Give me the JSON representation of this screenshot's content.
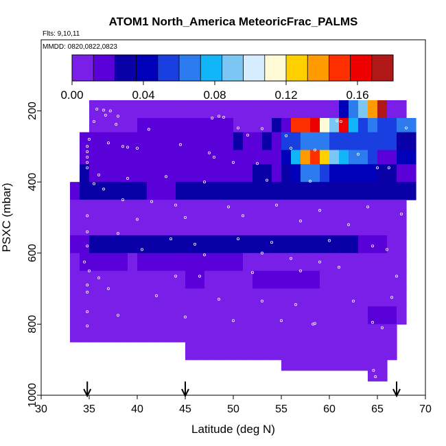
{
  "chart_data": {
    "type": "heatmap",
    "title": "ATOM1 North_America MeteoricFrac_PALMS",
    "subtitle": "Flts: 9,10,11",
    "note": "MMDD: 0820,0822,0823",
    "xlabel": "Latitude (deg N)",
    "ylabel": "PSXC (mbar)",
    "xlim": [
      30,
      70
    ],
    "ylim": [
      1000,
      0
    ],
    "x_ticks": [
      "30",
      "35",
      "40",
      "45",
      "50",
      "55",
      "60",
      "65",
      "70"
    ],
    "y_ticks": [
      "200",
      "400",
      "600",
      "800",
      "1000"
    ],
    "y_reversed": true,
    "grid": false,
    "colorbar": {
      "range": [
        0,
        0.18
      ],
      "tick_labels": [
        "0.00",
        "0.04",
        "0.08",
        "0.12",
        "0.16"
      ],
      "colors": [
        "#7a1fe8",
        "#5a00d8",
        "#0a00a8",
        "#0000b8",
        "#1a3fe0",
        "#2c7cf0",
        "#12b6f8",
        "#7cc6f4",
        "#d6ecff",
        "#fffbd6",
        "#ffd000",
        "#ff9a00",
        "#ff3000",
        "#ee0000",
        "#b01818"
      ]
    },
    "flight_markers_lat": [
      34.8,
      45.0,
      67.0
    ],
    "layers": [
      {
        "p": [
          170,
          220
        ],
        "lat": [
          35,
          68
        ],
        "values": [
          0.01,
          0.01,
          0.01,
          0.01,
          0.01,
          0.01,
          0.01,
          0.01,
          0.01,
          0.01,
          0.01,
          0.01,
          0.01,
          0.01,
          0.01,
          0.01,
          0.01,
          0.01,
          0.01,
          0.01,
          0.01,
          0.01,
          0.01,
          0.01,
          0.01,
          0.01,
          0.038,
          0.06,
          0.09,
          0.14,
          0.18,
          0.0,
          0.0
        ]
      },
      {
        "p": [
          220,
          260
        ],
        "lat": [
          35,
          69
        ],
        "values": [
          0.01,
          0.01,
          0.01,
          0.01,
          0.01,
          0.015,
          0.015,
          0.012,
          0.012,
          0.012,
          0.012,
          0.012,
          0.015,
          0.012,
          0.012,
          0.01,
          0.01,
          0.01,
          0.01,
          0.03,
          0.02,
          0.15,
          0.15,
          0.16,
          0.11,
          0.09,
          0.165,
          0.08,
          0.05,
          0.06,
          0.05,
          0.05,
          0.06,
          0.06
        ]
      },
      {
        "p": [
          260,
          310
        ],
        "lat": [
          34,
          69
        ],
        "values": [
          0.02,
          0.02,
          0.02,
          0.02,
          0.02,
          0.02,
          0.02,
          0.02,
          0.015,
          0.015,
          0.015,
          0.012,
          0.012,
          0.012,
          0.015,
          0.02,
          0.025,
          0.02,
          0.02,
          0.025,
          0.02,
          0.05,
          0.05,
          0.06,
          0.065,
          0.06,
          0.05,
          0.05,
          0.05,
          0.055,
          0.05,
          0.05,
          0.05,
          0.03,
          0.03
        ]
      },
      {
        "p": [
          310,
          350
        ],
        "lat": [
          34,
          69
        ],
        "values": [
          0.02,
          0.015,
          0.015,
          0.015,
          0.015,
          0.015,
          0.015,
          0.015,
          0.015,
          0.015,
          0.015,
          0.015,
          0.015,
          0.015,
          0.015,
          0.018,
          0.02,
          0.02,
          0.02,
          0.02,
          0.02,
          0.04,
          0.08,
          0.14,
          0.15,
          0.12,
          0.09,
          0.08,
          0.07,
          0.06,
          0.05,
          0.02,
          0.015,
          0.04,
          0.04
        ]
      },
      {
        "p": [
          350,
          400
        ],
        "lat": [
          34,
          69
        ],
        "values": [
          0.03,
          0.02,
          0.015,
          0.015,
          0.015,
          0.015,
          0.015,
          0.015,
          0.015,
          0.015,
          0.015,
          0.015,
          0.015,
          0.015,
          0.015,
          0.015,
          0.02,
          0.02,
          0.025,
          0.03,
          0.02,
          0.03,
          0.04,
          0.06,
          0.06,
          0.05,
          0.045,
          0.04,
          0.04,
          0.04,
          0.04,
          0.03,
          0.03,
          0.02,
          0.02
        ]
      },
      {
        "p": [
          400,
          450
        ],
        "lat": [
          33,
          69
        ],
        "values": [
          0.02,
          0.025,
          0.03,
          0.03,
          0.03,
          0.025,
          0.025,
          0.025,
          0.02,
          0.02,
          0.02,
          0.025,
          0.025,
          0.025,
          0.025,
          0.025,
          0.025,
          0.025,
          0.025,
          0.025,
          0.025,
          0.025,
          0.025,
          0.025,
          0.025,
          0.025,
          0.025,
          0.025,
          0.025,
          0.025,
          0.025,
          0.025,
          0.025,
          0.025,
          0.025,
          0.025
        ]
      },
      {
        "p": [
          450,
          500
        ],
        "lat": [
          33,
          68
        ],
        "values": [
          0.01,
          0.01,
          0.01,
          0.01,
          0.01,
          0.01,
          0.01,
          0.01,
          0.01,
          0.01,
          0.01,
          0.01,
          0.01,
          0.01,
          0.01,
          0.01,
          0.01,
          0.01,
          0.01,
          0.01,
          0.01,
          0.01,
          0.01,
          0.01,
          0.01,
          0.01,
          0.01,
          0.01,
          0.01,
          0.01,
          0.01,
          0.01,
          0.01,
          0.01,
          0.01
        ]
      },
      {
        "p": [
          500,
          550
        ],
        "lat": [
          33,
          68
        ],
        "values": [
          0.01,
          0.01,
          0.01,
          0.01,
          0.01,
          0.01,
          0.01,
          0.01,
          0.01,
          0.01,
          0.01,
          0.01,
          0.01,
          0.01,
          0.01,
          0.01,
          0.01,
          0.01,
          0.01,
          0.01,
          0.01,
          0.01,
          0.01,
          0.01,
          0.01,
          0.01,
          0.01,
          0.01,
          0.01,
          0.01,
          0.01,
          0.01,
          0.01,
          0.01,
          0.01
        ]
      },
      {
        "p": [
          550,
          600
        ],
        "lat": [
          33,
          68
        ],
        "values": [
          0.012,
          0.02,
          0.025,
          0.025,
          0.025,
          0.025,
          0.025,
          0.025,
          0.025,
          0.025,
          0.025,
          0.025,
          0.025,
          0.025,
          0.025,
          0.025,
          0.025,
          0.025,
          0.025,
          0.025,
          0.025,
          0.025,
          0.025,
          0.025,
          0.025,
          0.025,
          0.025,
          0.025,
          0.025,
          0.025,
          0.02,
          0.015,
          0.012,
          0.01,
          0.01
        ]
      },
      {
        "p": [
          600,
          650
        ],
        "lat": [
          33,
          68
        ],
        "values": [
          0.01,
          0.012,
          0.012,
          0.015,
          0.015,
          0.012,
          0.01,
          0.012,
          0.015,
          0.015,
          0.015,
          0.015,
          0.015,
          0.015,
          0.015,
          0.015,
          0.015,
          0.012,
          0.01,
          0.01,
          0.01,
          0.01,
          0.01,
          0.01,
          0.01,
          0.01,
          0.01,
          0.01,
          0.01,
          0.01,
          0.01,
          0.01,
          0.01,
          0.01,
          0.01
        ]
      },
      {
        "p": [
          650,
          700
        ],
        "lat": [
          33,
          68
        ],
        "values": [
          0.008,
          0.008,
          0.008,
          0.008,
          0.008,
          0.008,
          0.008,
          0.008,
          0.008,
          0.008,
          0.008,
          0.008,
          0.012,
          0.012,
          0.01,
          0.01,
          0.01,
          0.01,
          0.01,
          0.012,
          0.012,
          0.015,
          0.015,
          0.015,
          0.015,
          0.015,
          0.01,
          0.01,
          0.008,
          0.008,
          0.008,
          0.008,
          0.008,
          0.008,
          0.008
        ]
      },
      {
        "p": [
          700,
          750
        ],
        "lat": [
          33,
          68
        ],
        "values": [
          0.008,
          0.008,
          0.008,
          0.008,
          0.008,
          0.008,
          0.008,
          0.008,
          0.008,
          0.008,
          0.008,
          0.008,
          0.008,
          0.008,
          0.008,
          0.008,
          0.008,
          0.008,
          0.008,
          0.008,
          0.008,
          0.008,
          0.008,
          0.008,
          0.008,
          0.008,
          0.008,
          0.008,
          0.008,
          0.008,
          0.008,
          0.008,
          0.008,
          0.008,
          0.008
        ]
      },
      {
        "p": [
          750,
          800
        ],
        "lat": [
          33,
          68
        ],
        "values": [
          0.008,
          0.008,
          0.008,
          0.008,
          0.008,
          0.008,
          0.008,
          0.008,
          0.008,
          0.008,
          0.008,
          0.008,
          0.008,
          0.008,
          0.008,
          0.008,
          0.008,
          0.008,
          0.008,
          0.008,
          0.008,
          0.008,
          0.008,
          0.008,
          0.008,
          0.008,
          0.008,
          0.008,
          0.008,
          0.008,
          0.008,
          0.012,
          0.012,
          0.012,
          0.008
        ]
      },
      {
        "p": [
          800,
          850
        ],
        "lat": [
          33,
          67
        ],
        "values": [
          0.008,
          0.008,
          0.008,
          0.008,
          0.008,
          0.008,
          0.008,
          0.008,
          0.008,
          0.008,
          0.008,
          0.008,
          0.008,
          0.008,
          0.008,
          0.008,
          0.008,
          0.008,
          0.008,
          0.008,
          0.008,
          0.008,
          0.008,
          0.008,
          0.008,
          0.008,
          0.008,
          0.008,
          0.008,
          0.008,
          0.008,
          0.008,
          0.008,
          0.008
        ]
      },
      {
        "p": [
          850,
          900
        ],
        "lat": [
          45,
          67
        ],
        "values": [
          0.008,
          0.008,
          0.008,
          0.008,
          0.008,
          0.008,
          0.008,
          0.008,
          0.008,
          0.008,
          0.008,
          0.008,
          0.008,
          0.008,
          0.008,
          0.008,
          0.008,
          0.008,
          0.008,
          0.008,
          0.008,
          0.008
        ]
      },
      {
        "p": [
          900,
          930
        ],
        "lat": [
          55,
          66
        ],
        "values": [
          0.008,
          0.008,
          0.008,
          0.008,
          0.008,
          0.008,
          0.008,
          0.008,
          0.008,
          0.008,
          0.008
        ]
      },
      {
        "p": [
          930,
          960
        ],
        "lat": [
          64,
          66
        ],
        "values": [
          0.008,
          0.008
        ]
      }
    ],
    "sample_points": [
      [
        35.8,
        195
      ],
      [
        36.5,
        198
      ],
      [
        37.2,
        200
      ],
      [
        36.7,
        212
      ],
      [
        38.0,
        215
      ],
      [
        35.5,
        230
      ],
      [
        37.8,
        238
      ],
      [
        41.2,
        252
      ],
      [
        48.5,
        215
      ],
      [
        49.0,
        218
      ],
      [
        47.8,
        220
      ],
      [
        50.5,
        248
      ],
      [
        51.5,
        268
      ],
      [
        53.0,
        250
      ],
      [
        55.5,
        270
      ],
      [
        60.8,
        228
      ],
      [
        61.2,
        230
      ],
      [
        68.0,
        248
      ],
      [
        35.0,
        280
      ],
      [
        37.0,
        290
      ],
      [
        38.5,
        300
      ],
      [
        39.0,
        302
      ],
      [
        40.0,
        305
      ],
      [
        44.5,
        295
      ],
      [
        47.5,
        318
      ],
      [
        48.0,
        330
      ],
      [
        50.0,
        345
      ],
      [
        52.5,
        348
      ],
      [
        56.0,
        305
      ],
      [
        58.5,
        310
      ],
      [
        63.0,
        322
      ],
      [
        65.0,
        360
      ],
      [
        66.2,
        360
      ],
      [
        34.8,
        300
      ],
      [
        34.8,
        315
      ],
      [
        34.8,
        330
      ],
      [
        34.8,
        345
      ],
      [
        34.8,
        360
      ],
      [
        36.0,
        380
      ],
      [
        39.0,
        390
      ],
      [
        43.0,
        385
      ],
      [
        47.0,
        400
      ],
      [
        53.5,
        395
      ],
      [
        58.0,
        398
      ],
      [
        35.5,
        405
      ],
      [
        36.5,
        420
      ],
      [
        38.5,
        450
      ],
      [
        41.5,
        455
      ],
      [
        44.0,
        465
      ],
      [
        49.5,
        470
      ],
      [
        54.5,
        465
      ],
      [
        59.0,
        480
      ],
      [
        64.0,
        470
      ],
      [
        67.5,
        490
      ],
      [
        34.8,
        495
      ],
      [
        40.0,
        505
      ],
      [
        45.0,
        500
      ],
      [
        51.0,
        495
      ],
      [
        57.0,
        510
      ],
      [
        62.0,
        520
      ],
      [
        34.8,
        540
      ],
      [
        38.0,
        545
      ],
      [
        43.5,
        560
      ],
      [
        46.0,
        575
      ],
      [
        50.5,
        560
      ],
      [
        54.0,
        570
      ],
      [
        60.0,
        565
      ],
      [
        64.5,
        580
      ],
      [
        34.8,
        580
      ],
      [
        40.5,
        590
      ],
      [
        47.0,
        605
      ],
      [
        53.0,
        600
      ],
      [
        56.0,
        615
      ],
      [
        59.0,
        625
      ],
      [
        66.0,
        590
      ],
      [
        34.5,
        625
      ],
      [
        35.0,
        650
      ],
      [
        36.0,
        670
      ],
      [
        44.0,
        665
      ],
      [
        46.5,
        665
      ],
      [
        52.0,
        655
      ],
      [
        57.0,
        650
      ],
      [
        61.0,
        640
      ],
      [
        67.0,
        665
      ],
      [
        34.8,
        690
      ],
      [
        34.8,
        710
      ],
      [
        37.0,
        700
      ],
      [
        42.0,
        720
      ],
      [
        48.5,
        730
      ],
      [
        53.0,
        735
      ],
      [
        56.5,
        745
      ],
      [
        62.5,
        735
      ],
      [
        66.5,
        725
      ],
      [
        34.8,
        765
      ],
      [
        38.0,
        775
      ],
      [
        45.0,
        780
      ],
      [
        50.0,
        790
      ],
      [
        55.0,
        790
      ],
      [
        58.5,
        798
      ],
      [
        64.5,
        795
      ],
      [
        65.5,
        810
      ],
      [
        34.8,
        805
      ],
      [
        58.3,
        800
      ],
      [
        64.6,
        930
      ],
      [
        64.8,
        948
      ]
    ]
  }
}
